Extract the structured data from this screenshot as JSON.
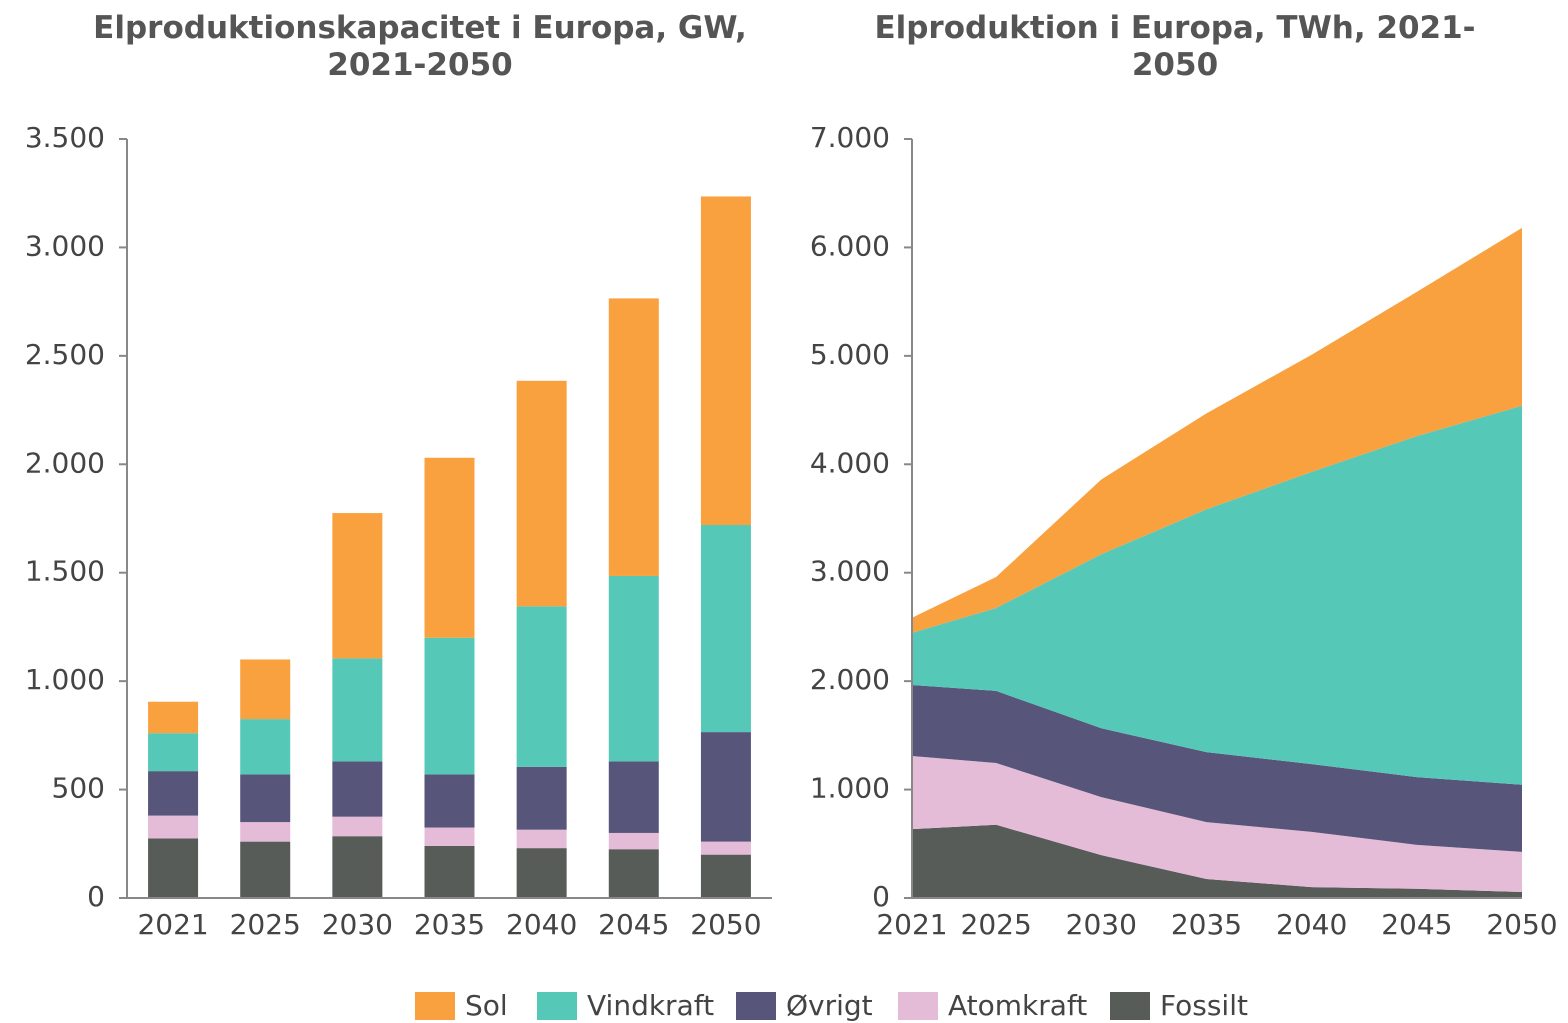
{
  "chart_data": [
    {
      "type": "bar",
      "stacked": true,
      "title": "Elproduktionskapacitet i Europa, GW, 2021-2050",
      "categories": [
        "2021",
        "2025",
        "2030",
        "2035",
        "2040",
        "2045",
        "2050"
      ],
      "series": [
        {
          "name": "Sol",
          "color": "#f9a03f",
          "values": [
            145,
            275,
            670,
            830,
            1040,
            1280,
            1515
          ]
        },
        {
          "name": "Vindkraft",
          "color": "#55c8b8",
          "values": [
            175,
            255,
            475,
            630,
            740,
            855,
            955
          ]
        },
        {
          "name": "Øvrigt",
          "color": "#57557a",
          "values": [
            205,
            220,
            255,
            245,
            290,
            330,
            505
          ]
        },
        {
          "name": "Atomkraft",
          "color": "#e5bcd8",
          "values": [
            105,
            90,
            90,
            85,
            85,
            75,
            60
          ]
        },
        {
          "name": "Fossilt",
          "color": "#575c58",
          "values": [
            275,
            260,
            285,
            240,
            230,
            225,
            200
          ]
        }
      ],
      "ylim": [
        0,
        3500
      ],
      "yticks": [
        0,
        500,
        {
          "value": 1000,
          "label": "1.000"
        },
        {
          "value": 1500,
          "label": "1.500"
        },
        {
          "value": 2000,
          "label": "2.000"
        },
        {
          "value": 2500,
          "label": "2.500"
        },
        {
          "value": 3000,
          "label": "3.000"
        },
        {
          "value": 3500,
          "label": "3.500"
        }
      ]
    },
    {
      "type": "area",
      "stacked": true,
      "title": "Elproduktion i Europa, TWh, 2021-2050",
      "x": [
        2021,
        2025,
        2030,
        2035,
        2040,
        2045,
        2050
      ],
      "series": [
        {
          "name": "Sol",
          "color": "#f9a03f",
          "values": [
            140,
            285,
            690,
            885,
            1080,
            1330,
            1640
          ]
        },
        {
          "name": "Vindkraft",
          "color": "#55c8b8",
          "values": [
            480,
            765,
            1605,
            2240,
            2695,
            3145,
            3495
          ]
        },
        {
          "name": "Øvrigt",
          "color": "#57557a",
          "values": [
            655,
            665,
            635,
            645,
            625,
            625,
            620
          ]
        },
        {
          "name": "Atomkraft",
          "color": "#e5bcd8",
          "values": [
            675,
            570,
            535,
            525,
            510,
            405,
            370
          ]
        },
        {
          "name": "Fossilt",
          "color": "#575c58",
          "values": [
            635,
            675,
            395,
            175,
            100,
            85,
            55
          ]
        }
      ],
      "xlim": [
        2021,
        2050
      ],
      "xticks": [
        2021,
        2025,
        2030,
        2035,
        2040,
        2045,
        2050
      ],
      "ylim": [
        0,
        7000
      ],
      "yticks": [
        0,
        {
          "value": 1000,
          "label": "1.000"
        },
        {
          "value": 2000,
          "label": "2.000"
        },
        {
          "value": 3000,
          "label": "3.000"
        },
        {
          "value": 4000,
          "label": "4.000"
        },
        {
          "value": 5000,
          "label": "5.000"
        },
        {
          "value": 6000,
          "label": "6.000"
        },
        {
          "value": 7000,
          "label": "7.000"
        }
      ]
    }
  ]
}
